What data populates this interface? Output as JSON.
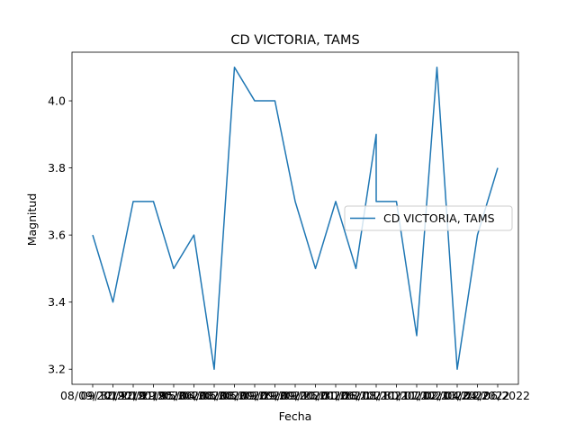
{
  "chart_data": {
    "type": "line",
    "title": "CD VICTORIA, TAMS",
    "xlabel": "Fecha",
    "ylabel": "Magnitud",
    "ylim": [
      3.155,
      4.145
    ],
    "yticks": [
      3.2,
      3.4,
      3.6,
      3.8,
      4.0
    ],
    "ytick_labels": [
      "3.2",
      "3.4",
      "3.6",
      "3.8",
      "4.0"
    ],
    "grid": false,
    "legend": {
      "placement": "center-right"
    },
    "color": "#1f77b4",
    "series": [
      {
        "name": "CD VICTORIA, TAMS",
        "x": [
          "08/09/2019",
          "09/12/2019",
          "30/12/2019",
          "20/01/2020",
          "29/05/2020",
          "05/06/2020",
          "04/08/2020",
          "06/08/2020",
          "06/09/2020",
          "09/09/2020",
          "29/09/2020",
          "09/10/2020",
          "26/01/2021",
          "30/06/2021",
          "28/08/2021",
          "28/08/2021",
          "11/11/2021",
          "30/11/2021",
          "07/02/2022",
          "02/03/2022",
          "04/04/2022",
          "22/06/2022"
        ],
        "x_pos": [
          0,
          1,
          2,
          3,
          4,
          5,
          6,
          7,
          8,
          9,
          10,
          11,
          12,
          13,
          14,
          14,
          15,
          16,
          17,
          18,
          19,
          20
        ],
        "values": [
          3.6,
          3.4,
          3.7,
          3.7,
          3.5,
          3.6,
          3.2,
          4.1,
          4.0,
          4.0,
          3.7,
          3.5,
          3.7,
          3.5,
          3.9,
          3.7,
          3.7,
          3.3,
          4.1,
          3.2,
          3.6,
          3.8
        ]
      }
    ],
    "xtick_labels": [
      "08/09/2019",
      "09/12/2019",
      "30/12/2019",
      "20/01/2020",
      "29/05/2020",
      "05/06/2020",
      "04/08/2020",
      "06/08/2020",
      "06/09/2020",
      "09/09/2020",
      "29/09/2020",
      "09/10/2020",
      "26/01/2021",
      "30/06/2021",
      "28/08/2021",
      "11/11/2021",
      "30/11/2021",
      "07/02/2022",
      "02/03/2022",
      "04/04/2022",
      "22/06/2022"
    ]
  }
}
